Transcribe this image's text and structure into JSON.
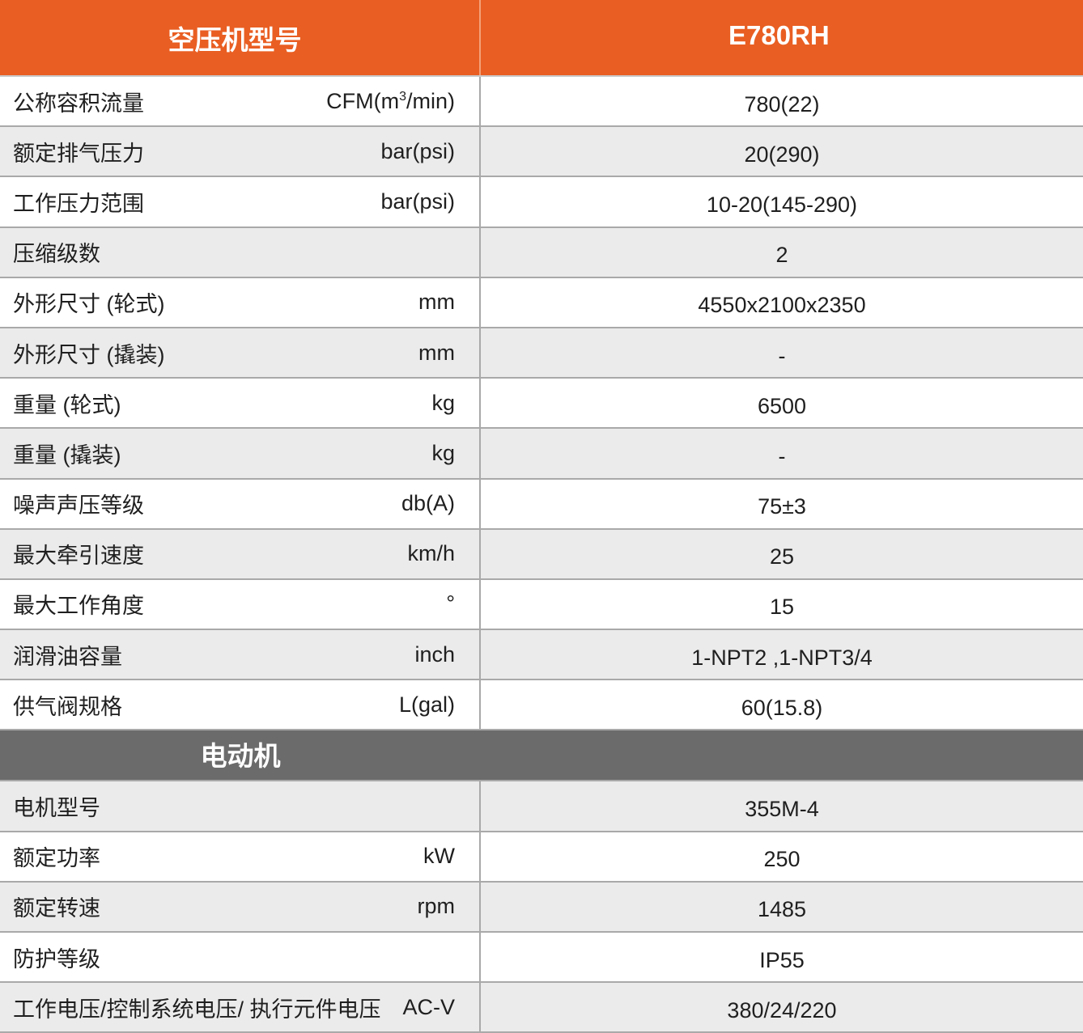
{
  "header": {
    "model_label": "空压机型号",
    "model_value": "E780RH"
  },
  "compressor_rows": [
    {
      "label": "公称容积流量",
      "unit_pre": "CFM(m",
      "unit_sup": "3",
      "unit_post": "/min)",
      "value": "780(22)"
    },
    {
      "label": "额定排气压力",
      "unit": "bar(psi)",
      "value": "20(290)"
    },
    {
      "label": "工作压力范围",
      "unit": "bar(psi)",
      "value": "10-20(145-290)"
    },
    {
      "label": "压缩级数",
      "unit": "",
      "value": "2"
    },
    {
      "label": "外形尺寸 (轮式)",
      "unit": "mm",
      "value": "4550x2100x2350"
    },
    {
      "label": "外形尺寸 (撬装)",
      "unit": "mm",
      "value": "-"
    },
    {
      "label": "重量 (轮式)",
      "unit": "kg",
      "value": "6500"
    },
    {
      "label": "重量 (撬装)",
      "unit": "kg",
      "value": "-"
    },
    {
      "label": "噪声声压等级",
      "unit": "db(A)",
      "value": "75±3"
    },
    {
      "label": "最大牵引速度",
      "unit": "km/h",
      "value": "25"
    },
    {
      "label": "最大工作角度",
      "unit": "°",
      "value": "15"
    },
    {
      "label": "润滑油容量",
      "unit": "inch",
      "value": "1-NPT2 ,1-NPT3/4"
    },
    {
      "label": "供气阀规格",
      "unit": "L(gal)",
      "value": "60(15.8)"
    }
  ],
  "motor_section": {
    "title": "电动机"
  },
  "motor_rows": [
    {
      "label": "电机型号",
      "unit": "",
      "value": "355M-4"
    },
    {
      "label": "额定功率",
      "unit": "kW",
      "value": "250"
    },
    {
      "label": "额定转速",
      "unit": "rpm",
      "value": "1485"
    },
    {
      "label": "防护等级",
      "unit": "",
      "value": "IP55"
    },
    {
      "label": "工作电压/控制系统电压/ 执行元件电压",
      "unit": "AC-V",
      "value": "380/24/220"
    }
  ]
}
